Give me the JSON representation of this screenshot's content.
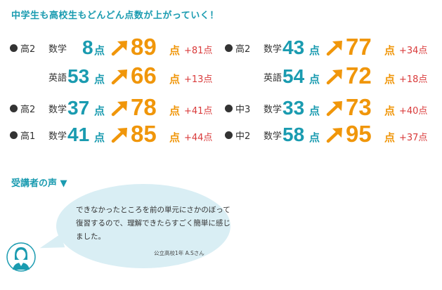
{
  "headline": "中学生も高校生もどんどん点数が上がっていく！",
  "results": {
    "left": [
      {
        "grade": "高2",
        "subject": "数学",
        "before": "8",
        "after": "89",
        "gain": "+81点"
      },
      {
        "grade": "",
        "subject": "英語",
        "before": "53",
        "after": "66",
        "gain": "+13点"
      },
      {
        "grade": "高2",
        "subject": "数学",
        "before": "37",
        "after": "78",
        "gain": "+41点"
      },
      {
        "grade": "高1",
        "subject": "数学",
        "before": "41",
        "after": "85",
        "gain": "+44点"
      }
    ],
    "right": [
      {
        "grade": "高2",
        "subject": "数学",
        "before": "43",
        "after": "77",
        "gain": "+34点"
      },
      {
        "grade": "",
        "subject": "英語",
        "before": "54",
        "after": "72",
        "gain": "+18点"
      },
      {
        "grade": "中3",
        "subject": "数学",
        "before": "33",
        "after": "73",
        "gain": "+40点"
      },
      {
        "grade": "中2",
        "subject": "数学",
        "before": "58",
        "after": "95",
        "gain": "+37点"
      }
    ],
    "unit": "点"
  },
  "voice": {
    "title": "受講者の声 ▼",
    "quote": "できなかったところを前の単元にさかのぼって復習するので、理解できたらすごく簡単に感じました。",
    "signature": "公立高校1年 A.Sさん"
  },
  "colors": {
    "teal": "#1a9bb0",
    "orange": "#f0960a",
    "red": "#d93a3a",
    "bubble": "#d9eef4"
  }
}
